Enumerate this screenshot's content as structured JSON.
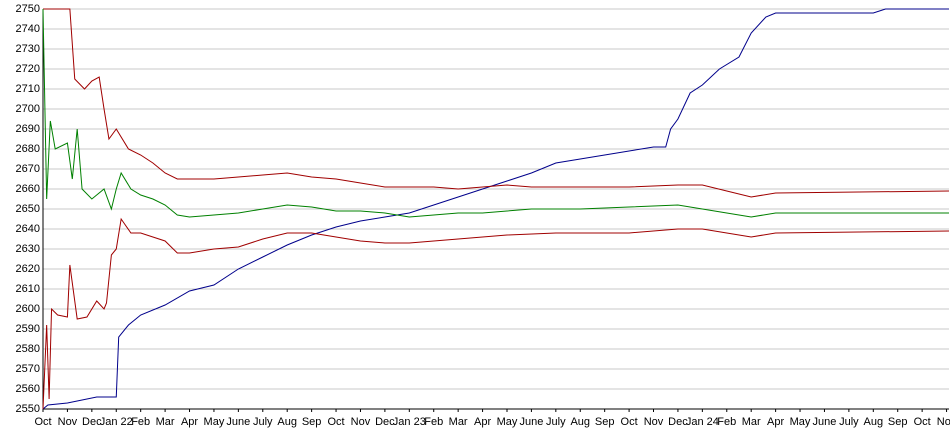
{
  "chart_data": {
    "type": "line",
    "grid": true,
    "ylim": [
      2550,
      2750
    ],
    "yticks": [
      2550,
      2560,
      2570,
      2580,
      2590,
      2600,
      2610,
      2620,
      2630,
      2640,
      2650,
      2660,
      2670,
      2680,
      2690,
      2700,
      2710,
      2720,
      2730,
      2740,
      2750
    ],
    "xlim": [
      0,
      37.1
    ],
    "xticks": [
      {
        "value": 0,
        "label": "Oct"
      },
      {
        "value": 1,
        "label": "Nov"
      },
      {
        "value": 2,
        "label": "Dec"
      },
      {
        "value": 3,
        "label": "Jan 22"
      },
      {
        "value": 4,
        "label": "Feb"
      },
      {
        "value": 5,
        "label": "Mar"
      },
      {
        "value": 6,
        "label": "Apr"
      },
      {
        "value": 7,
        "label": "May"
      },
      {
        "value": 8,
        "label": "June"
      },
      {
        "value": 9,
        "label": "July"
      },
      {
        "value": 10,
        "label": "Aug"
      },
      {
        "value": 11,
        "label": "Sep"
      },
      {
        "value": 12,
        "label": "Oct"
      },
      {
        "value": 13,
        "label": "Nov"
      },
      {
        "value": 14,
        "label": "Dec"
      },
      {
        "value": 15,
        "label": "Jan 23"
      },
      {
        "value": 16,
        "label": "Feb"
      },
      {
        "value": 17,
        "label": "Mar"
      },
      {
        "value": 18,
        "label": "Apr"
      },
      {
        "value": 19,
        "label": "May"
      },
      {
        "value": 20,
        "label": "June"
      },
      {
        "value": 21,
        "label": "July"
      },
      {
        "value": 22,
        "label": "Aug"
      },
      {
        "value": 23,
        "label": "Sep"
      },
      {
        "value": 24,
        "label": "Oct"
      },
      {
        "value": 25,
        "label": "Nov"
      },
      {
        "value": 26,
        "label": "Dec"
      },
      {
        "value": 27,
        "label": "Jan 24"
      },
      {
        "value": 28,
        "label": "Feb"
      },
      {
        "value": 29,
        "label": "Mar"
      },
      {
        "value": 30,
        "label": "Apr"
      },
      {
        "value": 31,
        "label": "May"
      },
      {
        "value": 32,
        "label": "June"
      },
      {
        "value": 33,
        "label": "July"
      },
      {
        "value": 34,
        "label": "Aug"
      },
      {
        "value": 35,
        "label": "Sep"
      },
      {
        "value": 36,
        "label": "Oct"
      },
      {
        "value": 37,
        "label": "Nov"
      }
    ],
    "series": [
      {
        "color": "#00008b",
        "x": [
          0,
          0.2,
          1,
          2.2,
          3,
          3.1,
          3.5,
          4,
          5,
          6,
          7,
          8,
          9,
          10,
          11,
          12,
          13,
          14,
          15,
          16,
          17,
          18,
          19,
          20,
          21,
          22,
          23,
          24,
          25,
          25.5,
          25.7,
          26,
          26.5,
          27,
          27.7,
          28.5,
          29,
          29.6,
          30,
          34,
          34.5,
          37.1
        ],
        "values": [
          2550,
          2552,
          2553,
          2556,
          2556,
          2586,
          2592,
          2597,
          2602,
          2609,
          2612,
          2620,
          2626,
          2632,
          2637,
          2641,
          2644,
          2646,
          2648,
          2652,
          2656,
          2660,
          2664,
          2668,
          2673,
          2675,
          2677,
          2679,
          2681,
          2681,
          2690,
          2695,
          2708,
          2712,
          2720,
          2726,
          2738,
          2746,
          2748,
          2748,
          2750,
          2750
        ]
      },
      {
        "color": "#a00000",
        "x": [
          0,
          1.1,
          1.3,
          1.7,
          2,
          2.3,
          2.5,
          2.7,
          3,
          3.5,
          4,
          4.5,
          5,
          5.5,
          7,
          8,
          9,
          10,
          11,
          12,
          13,
          14,
          16,
          17,
          18,
          19,
          20,
          22,
          24,
          26,
          27,
          28,
          29,
          30,
          37.1
        ],
        "values": [
          2750,
          2750,
          2715,
          2710,
          2714,
          2716,
          2700,
          2685,
          2690,
          2680,
          2677,
          2673,
          2668,
          2665,
          2665,
          2666,
          2667,
          2668,
          2666,
          2665,
          2663,
          2661,
          2661,
          2660,
          2661,
          2662,
          2661,
          2661,
          2661,
          2662,
          2662,
          2659,
          2656,
          2658,
          2659
        ]
      },
      {
        "color": "#008000",
        "x": [
          0,
          0.15,
          0.3,
          0.5,
          1,
          1.2,
          1.4,
          1.6,
          2,
          2.5,
          2.8,
          3,
          3.2,
          3.6,
          4,
          4.5,
          5,
          5.5,
          6,
          7,
          8,
          9,
          10,
          11,
          12,
          13,
          14,
          15,
          16,
          17,
          18,
          19,
          20,
          22,
          24,
          26,
          27,
          28,
          29,
          30,
          37.1
        ],
        "values": [
          2750,
          2655,
          2694,
          2680,
          2683,
          2665,
          2690,
          2660,
          2655,
          2660,
          2650,
          2660,
          2668,
          2660,
          2657,
          2655,
          2652,
          2647,
          2646,
          2647,
          2648,
          2650,
          2652,
          2651,
          2649,
          2649,
          2648,
          2646,
          2647,
          2648,
          2648,
          2649,
          2650,
          2650,
          2651,
          2652,
          2650,
          2648,
          2646,
          2648,
          2648
        ]
      },
      {
        "color": "#a00000",
        "x": [
          0,
          0.15,
          0.25,
          0.35,
          0.6,
          1,
          1.1,
          1.4,
          1.8,
          2.2,
          2.5,
          2.6,
          2.8,
          3,
          3.2,
          3.6,
          4,
          4.5,
          5,
          5.5,
          6,
          7,
          8,
          9,
          10,
          11,
          12,
          13,
          14,
          15,
          16,
          17,
          18,
          19,
          21,
          24,
          26,
          27,
          28,
          29,
          30,
          37.1
        ],
        "values": [
          2550,
          2592,
          2555,
          2600,
          2597,
          2596,
          2622,
          2595,
          2596,
          2604,
          2600,
          2603,
          2627,
          2630,
          2645,
          2638,
          2638,
          2636,
          2634,
          2628,
          2628,
          2630,
          2631,
          2635,
          2638,
          2638,
          2636,
          2634,
          2633,
          2633,
          2634,
          2635,
          2636,
          2637,
          2638,
          2638,
          2640,
          2640,
          2638,
          2636,
          2638,
          2639
        ]
      }
    ]
  }
}
